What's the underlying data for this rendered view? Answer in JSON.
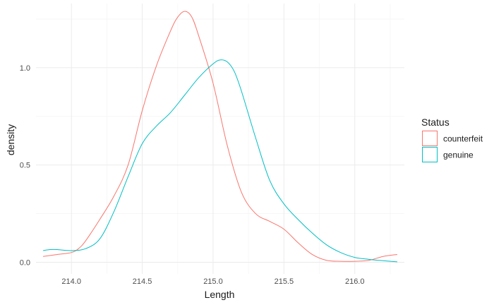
{
  "chart_data": {
    "type": "line",
    "chart_kind": "density",
    "xlabel": "Length",
    "ylabel": "density",
    "xlim": [
      213.75,
      216.35
    ],
    "ylim": [
      -0.06,
      1.33
    ],
    "x_ticks": [
      214.0,
      214.5,
      215.0,
      215.5,
      216.0
    ],
    "x_tick_labels": [
      "214.0",
      "214.5",
      "215.0",
      "215.5",
      "216.0"
    ],
    "y_ticks": [
      0.0,
      0.5,
      1.0
    ],
    "y_tick_labels": [
      "0.0",
      "0.5",
      "1.0"
    ],
    "grid": true,
    "legend": {
      "title": "Status",
      "position": "right"
    },
    "series": [
      {
        "name": "counterfeit",
        "color": "#F8766D",
        "x": [
          213.8,
          213.9,
          214.0,
          214.05,
          214.1,
          214.2,
          214.3,
          214.4,
          214.5,
          214.6,
          214.7,
          214.75,
          214.8,
          214.85,
          214.9,
          215.0,
          215.1,
          215.2,
          215.3,
          215.4,
          215.5,
          215.6,
          215.7,
          215.8,
          215.9,
          216.0,
          216.1,
          216.2,
          216.3
        ],
        "y": [
          0.03,
          0.04,
          0.05,
          0.07,
          0.11,
          0.22,
          0.34,
          0.5,
          0.78,
          1.01,
          1.19,
          1.26,
          1.29,
          1.26,
          1.16,
          0.92,
          0.6,
          0.36,
          0.25,
          0.21,
          0.17,
          0.1,
          0.04,
          0.01,
          0.005,
          0.005,
          0.01,
          0.03,
          0.04
        ]
      },
      {
        "name": "genuine",
        "color": "#00BFC4",
        "x": [
          213.8,
          213.85,
          213.9,
          214.0,
          214.1,
          214.2,
          214.3,
          214.4,
          214.5,
          214.6,
          214.7,
          214.8,
          214.9,
          215.0,
          215.05,
          215.1,
          215.15,
          215.2,
          215.3,
          215.4,
          215.5,
          215.6,
          215.7,
          215.8,
          215.9,
          216.0,
          216.1,
          216.2,
          216.3
        ],
        "y": [
          0.06,
          0.065,
          0.065,
          0.06,
          0.07,
          0.12,
          0.26,
          0.44,
          0.61,
          0.7,
          0.77,
          0.86,
          0.95,
          1.02,
          1.04,
          1.03,
          0.98,
          0.88,
          0.64,
          0.42,
          0.3,
          0.22,
          0.15,
          0.09,
          0.05,
          0.025,
          0.015,
          0.008,
          0.002
        ]
      }
    ]
  }
}
